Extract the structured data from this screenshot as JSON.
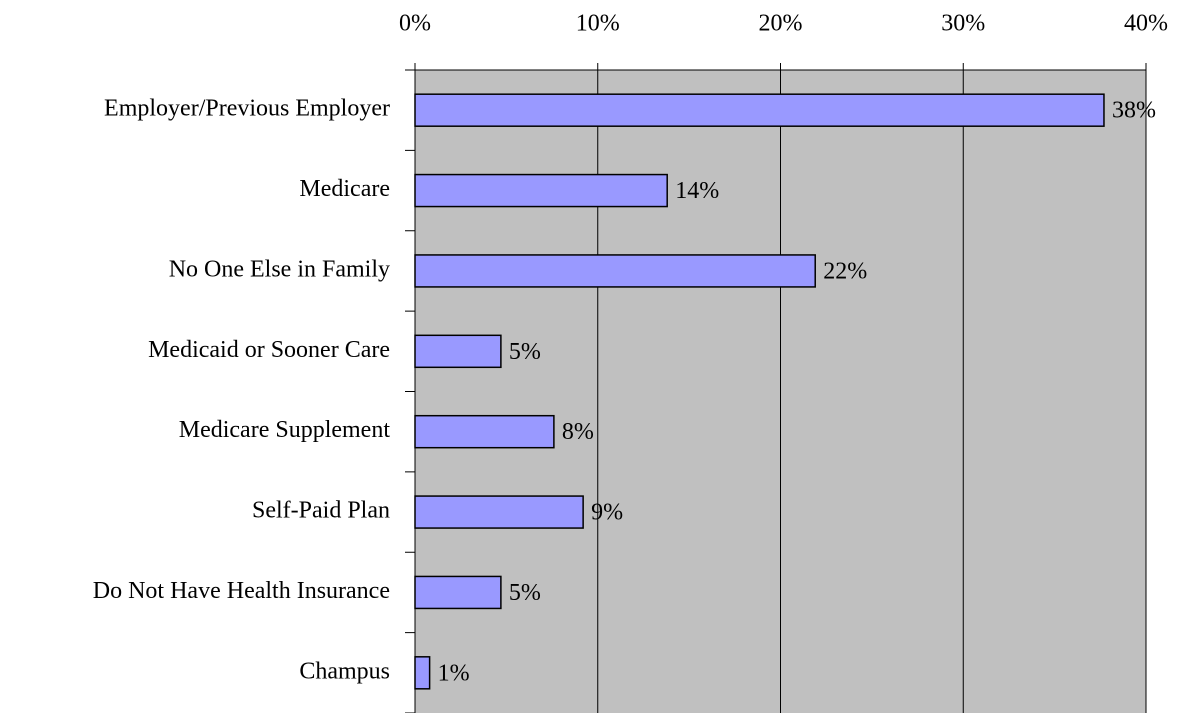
{
  "chart_data": {
    "type": "bar",
    "orientation": "horizontal",
    "categories": [
      "Employer/Previous Employer",
      "Medicare",
      "No One Else in Family",
      "Medicaid or Sooner Care",
      "Medicare Supplement",
      "Self-Paid Plan",
      "Do Not Have Health Insurance",
      "Champus"
    ],
    "values": [
      37.7,
      13.8,
      21.9,
      4.7,
      7.6,
      9.2,
      4.7,
      0.8
    ],
    "value_labels": [
      "38%",
      "14%",
      "22%",
      "5%",
      "8%",
      "9%",
      "5%",
      "1%"
    ],
    "color": "#9999ff",
    "xlim": [
      0,
      40
    ],
    "xticks": [
      {
        "value": 0,
        "label": "0%"
      },
      {
        "value": 10,
        "label": "10%"
      },
      {
        "value": 20,
        "label": "20%"
      },
      {
        "value": 30,
        "label": "30%"
      },
      {
        "value": 40,
        "label": "40%"
      }
    ],
    "grid": true
  }
}
